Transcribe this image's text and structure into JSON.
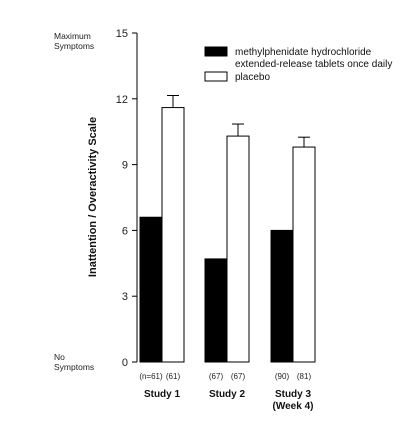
{
  "chart_data": {
    "type": "bar",
    "ylabel": "Inattention / Overactivity Scale",
    "y_top_label": [
      "Maximum",
      "Symptoms"
    ],
    "y_bottom_label": [
      "No",
      "Symptoms"
    ],
    "ylim": [
      0,
      15
    ],
    "yticks": [
      0,
      3,
      6,
      9,
      12,
      15
    ],
    "grid": false,
    "legend_position": "top-right",
    "categories": [
      {
        "name": [
          "Study 1"
        ],
        "n_labels": [
          "(n=61)",
          "(61)"
        ]
      },
      {
        "name": [
          "Study 2"
        ],
        "n_labels": [
          "(67)",
          "(67)"
        ]
      },
      {
        "name": [
          "Study 3",
          "(Week 4)"
        ],
        "n_labels": [
          "(90)",
          "(81)"
        ]
      }
    ],
    "series": [
      {
        "name": [
          "methylphenidate hydrochloride",
          "extended-release tablets once daily"
        ],
        "color": "#000000",
        "values": [
          6.6,
          4.7,
          6.0
        ],
        "errors": [
          0,
          0,
          0
        ]
      },
      {
        "name": [
          "placebo"
        ],
        "color": "#ffffff",
        "values": [
          11.6,
          10.3,
          9.8
        ],
        "errors": [
          0.55,
          0.55,
          0.45
        ]
      }
    ]
  }
}
